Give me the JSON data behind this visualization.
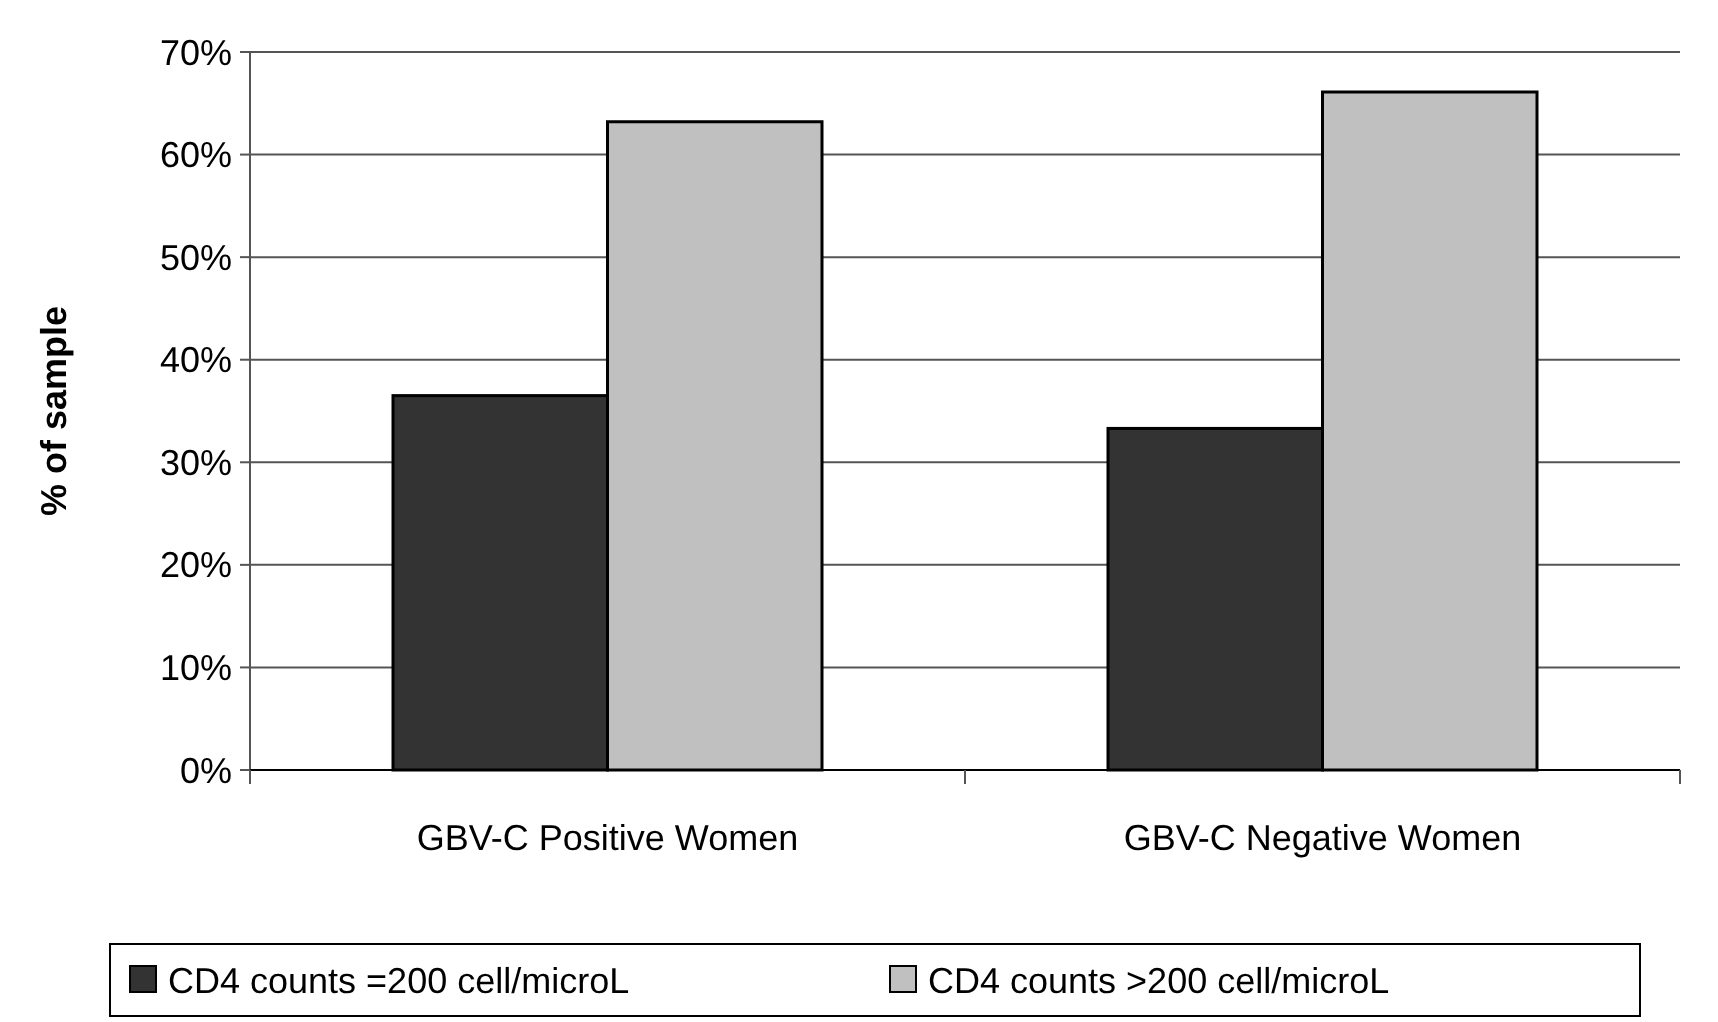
{
  "chart_data": {
    "type": "bar",
    "ylabel": "% of sample",
    "categories": [
      "GBV-C Positive Women",
      "GBV-C Negative Women"
    ],
    "series": [
      {
        "name": "CD4 counts =200 cell/microL",
        "color": "#333333",
        "values": [
          36.5,
          33.3
        ]
      },
      {
        "name": "CD4 counts >200 cell/microL",
        "color": "#c0c0c0",
        "values": [
          63.2,
          66.1
        ]
      }
    ],
    "ylim": [
      0,
      70
    ],
    "yticks": [
      {
        "value": 0,
        "label": "0%"
      },
      {
        "value": 10,
        "label": "10%"
      },
      {
        "value": 20,
        "label": "20%"
      },
      {
        "value": 30,
        "label": "30%"
      },
      {
        "value": 40,
        "label": "40%"
      },
      {
        "value": 50,
        "label": "50%"
      },
      {
        "value": 60,
        "label": "60%"
      },
      {
        "value": 70,
        "label": "70%"
      }
    ],
    "grid": "y",
    "legend": "bottom"
  }
}
